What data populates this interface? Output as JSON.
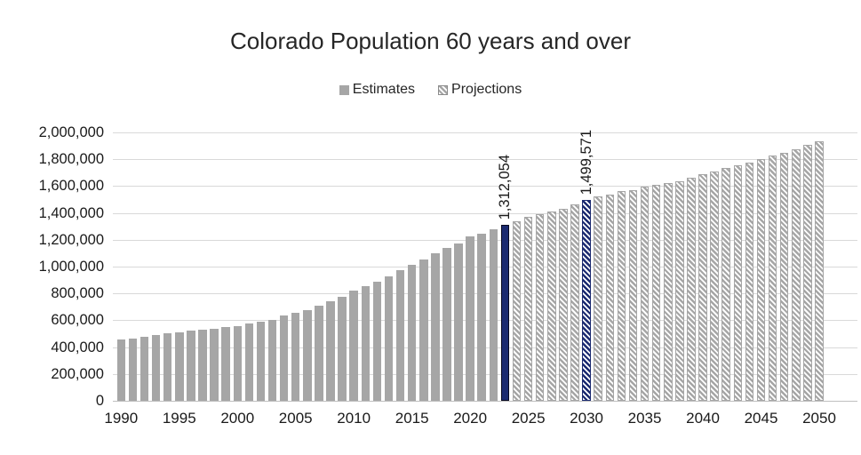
{
  "chart_data": {
    "type": "bar",
    "title": "Colorado Population 60 years and over",
    "legend": [
      "Estimates",
      "Projections"
    ],
    "legend_position": "top",
    "grid": true,
    "ylim": [
      0,
      2000000
    ],
    "ytick_step": 200000,
    "ytick_labels": [
      "0",
      "200,000",
      "400,000",
      "600,000",
      "800,000",
      "1,000,000",
      "1,200,000",
      "1,400,000",
      "1,600,000",
      "1,800,000",
      "2,000,000"
    ],
    "xtick_labels": [
      "1990",
      "1995",
      "2000",
      "2005",
      "2010",
      "2015",
      "2020",
      "2025",
      "2030",
      "2035",
      "2040",
      "2045",
      "2050"
    ],
    "series": [
      {
        "name": "Estimates",
        "style": "solid-gray",
        "start_year": 1990,
        "values": [
          459000,
          465000,
          477000,
          489000,
          502000,
          513000,
          521000,
          530000,
          539000,
          548000,
          556000,
          578000,
          590000,
          603000,
          633000,
          658000,
          676000,
          708000,
          741000,
          778000,
          824000,
          857000,
          890000,
          929000,
          976000,
          1015000,
          1051000,
          1097000,
          1137000,
          1174000,
          1223000,
          1247000,
          1277000,
          1312054
        ]
      },
      {
        "name": "Projections",
        "style": "hatched-gray",
        "start_year": 2024,
        "values": [
          1338000,
          1371000,
          1389000,
          1410000,
          1432000,
          1465000,
          1499571,
          1520000,
          1538000,
          1560000,
          1571000,
          1593000,
          1609000,
          1622000,
          1637000,
          1660000,
          1690000,
          1712000,
          1732000,
          1754000,
          1776000,
          1804000,
          1827000,
          1849000,
          1872000,
          1909000,
          1937000
        ]
      }
    ],
    "highlighted_bars": [
      {
        "year": 2023,
        "label": "1,312,054",
        "style": "solid-navy"
      },
      {
        "year": 2030,
        "label": "1,499,571",
        "style": "hatched-navy"
      }
    ],
    "colors": {
      "estimate_bar": "#a6a6a6",
      "projection_hatch": "#a6a6a6",
      "highlight_navy": "#1b2a70",
      "gridline": "#d9d9d9",
      "axis_line": "#bfbfbf",
      "text": "#262626"
    }
  }
}
